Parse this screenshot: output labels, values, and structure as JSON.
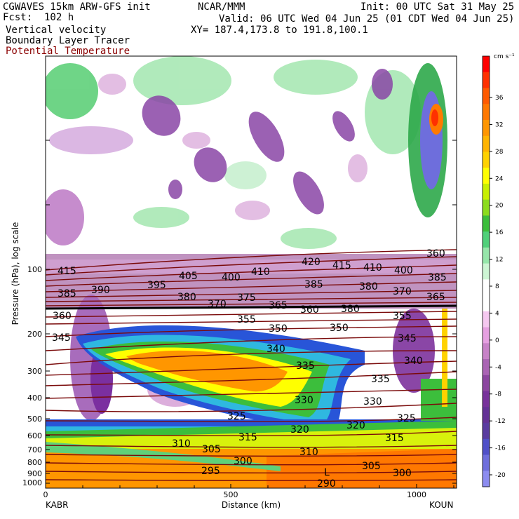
{
  "header": {
    "left1": "CGWAVES 15km ARW-GFS init",
    "left2": "Fcst:  102 h",
    "left3": "Vertical velocity",
    "left4": "Boundary Layer Tracer",
    "left5": "Potential Temperature",
    "center1": "NCAR/MMM",
    "center2": "Valid: 06 UTC Wed 04 Jun 25 (01 CDT Wed 04 Jun 25)",
    "center3": "XY= 187.4,173.8 to 191.8,100.1",
    "right1": "Init: 00 UTC Sat 31 May 25"
  },
  "colors": {
    "theta_contour": "#7a0a0a",
    "up": "#ff7a00",
    "down": "#7b2fa0"
  },
  "chart_data": {
    "type": "heatmap",
    "title": "Vertical velocity",
    "xlabel": "Distance (km)",
    "ylabel": "Pressure (hPa), log scale",
    "x_ticks": [
      "0",
      "500",
      "1000"
    ],
    "y_ticks": [
      "100",
      "200",
      "300",
      "400",
      "500",
      "600",
      "700",
      "800",
      "900",
      "1000"
    ],
    "x_endpoints": [
      "KABR",
      "KOUN"
    ],
    "xlim": [
      0,
      1110
    ],
    "colorbar": {
      "units": "cm s⁻¹",
      "labels": [
        "36",
        "32",
        "28",
        "24",
        "20",
        "16",
        "12",
        "8",
        "4",
        "0",
        "-4",
        "-8",
        "-12",
        "-16",
        "-20"
      ],
      "colors": [
        "#ff0000",
        "#ff3000",
        "#ff5a00",
        "#ff7800",
        "#ff9600",
        "#ffb400",
        "#ffd200",
        "#ffff00",
        "#c8f000",
        "#8cdc1e",
        "#3cbe3c",
        "#50d07a",
        "#96e6aa",
        "#cdf5d4",
        "#ffffff",
        "#ffffff",
        "#f5c8f0",
        "#e6a0e1",
        "#c882c8",
        "#aa64b4",
        "#8c46a0",
        "#78329b",
        "#643296",
        "#5a3ca0",
        "#5050c8",
        "#6e6edc",
        "#8c8cf0"
      ]
    },
    "theta_labels": [
      "415",
      "390",
      "385",
      "395",
      "405",
      "400",
      "410",
      "420",
      "415",
      "410",
      "400",
      "385",
      "380",
      "370",
      "375",
      "365",
      "360",
      "380",
      "385",
      "380",
      "360",
      "355",
      "350",
      "345",
      "340",
      "335",
      "330",
      "325",
      "320",
      "315",
      "310",
      "305",
      "300",
      "295",
      "290",
      "L",
      "350",
      "345",
      "340",
      "335",
      "330",
      "325",
      "320",
      "315",
      "305",
      "300",
      "370",
      "365",
      "355",
      "360",
      "310"
    ]
  }
}
